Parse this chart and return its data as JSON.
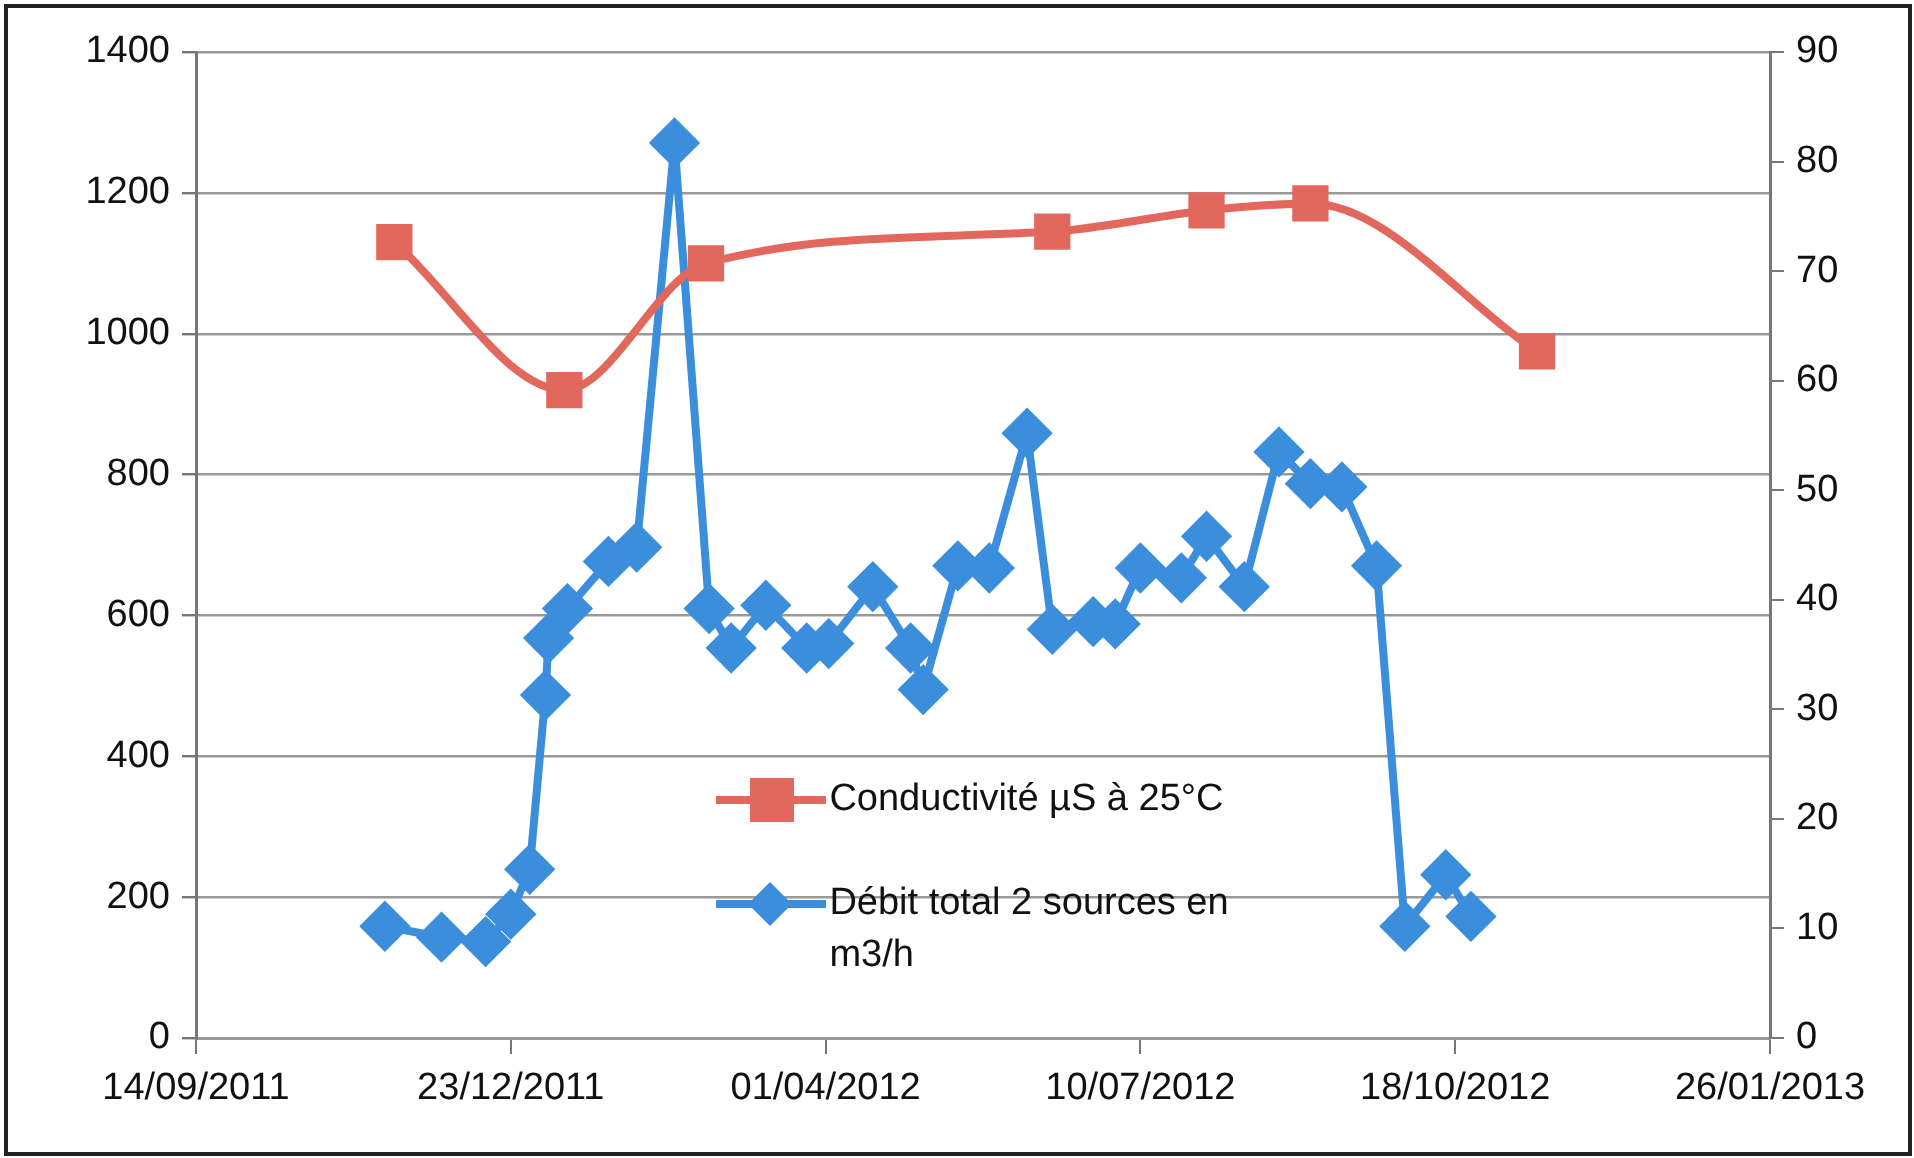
{
  "chart_data": {
    "type": "line",
    "grid": "y",
    "legend": "bottom",
    "xlim": [
      "2011-09-14",
      "2013-01-26"
    ],
    "xticks": [
      {
        "value": "2011-09-14",
        "label": "14/09/2011"
      },
      {
        "value": "2011-12-23",
        "label": "23/12/2011"
      },
      {
        "value": "2012-04-01",
        "label": "01/04/2012"
      },
      {
        "value": "2012-07-10",
        "label": "10/07/2012"
      },
      {
        "value": "2012-10-18",
        "label": "18/10/2012"
      },
      {
        "value": "2013-01-26",
        "label": "26/01/2013"
      }
    ],
    "ylim": [
      0,
      1400
    ],
    "yticks": [
      0,
      200,
      400,
      600,
      800,
      1000,
      1200,
      1400
    ],
    "y2lim": [
      0,
      90
    ],
    "y2ticks": [
      0,
      10,
      20,
      30,
      40,
      50,
      60,
      70,
      80,
      90
    ],
    "series": [
      {
        "name": "Conductivité µS à 25°C",
        "color": "#e2685e",
        "marker": "square",
        "x": [
          "2011-11-16",
          "2012-01-09",
          "2012-02-23",
          "2012-06-12",
          "2012-07-31",
          "2012-09-02",
          "2012-11-13"
        ],
        "values": [
          1130,
          920,
          1100,
          1145,
          1175,
          1185,
          975
        ]
      },
      {
        "name": "Débit total 2 sources en m3/h",
        "color": "#3b8edb",
        "marker": "diamond",
        "axis": "y2",
        "x": [
          "2011-11-13",
          "2011-12-01",
          "2011-12-15",
          "2011-12-23",
          "2011-12-29",
          "2012-01-03",
          "2012-01-04",
          "2012-01-10",
          "2012-01-23",
          "2012-02-01",
          "2012-02-13",
          "2012-02-24",
          "2012-03-02",
          "2012-03-13",
          "2012-03-24",
          "2012-03-26",
          "2012-04-02",
          "2012-04-16",
          "2012-04-28",
          "2012-05-02",
          "2012-05-13",
          "2012-05-23",
          "2012-06-04",
          "2012-06-12",
          "2012-06-25",
          "2012-07-02",
          "2012-07-10",
          "2012-07-23",
          "2012-07-31",
          "2012-08-12",
          "2012-08-23",
          "2012-09-02",
          "2012-09-12",
          "2012-09-23",
          "2012-10-02",
          "2012-10-15",
          "2012-10-23"
        ],
        "values": [
          10.2,
          9.2,
          8.8,
          11.3,
          15.4,
          31.3,
          36.5,
          39.2,
          43.5,
          44.8,
          81.7,
          39.2,
          35.6,
          39.5,
          null,
          35.6,
          36,
          41.2,
          35.6,
          31.8,
          43.1,
          42.9,
          55.2,
          37.3,
          38,
          37.8,
          42.9,
          42,
          45.8,
          41.2,
          53.5,
          50.6,
          50.3,
          43.1,
          10.2,
          14.9,
          11.1
        ]
      }
    ]
  }
}
